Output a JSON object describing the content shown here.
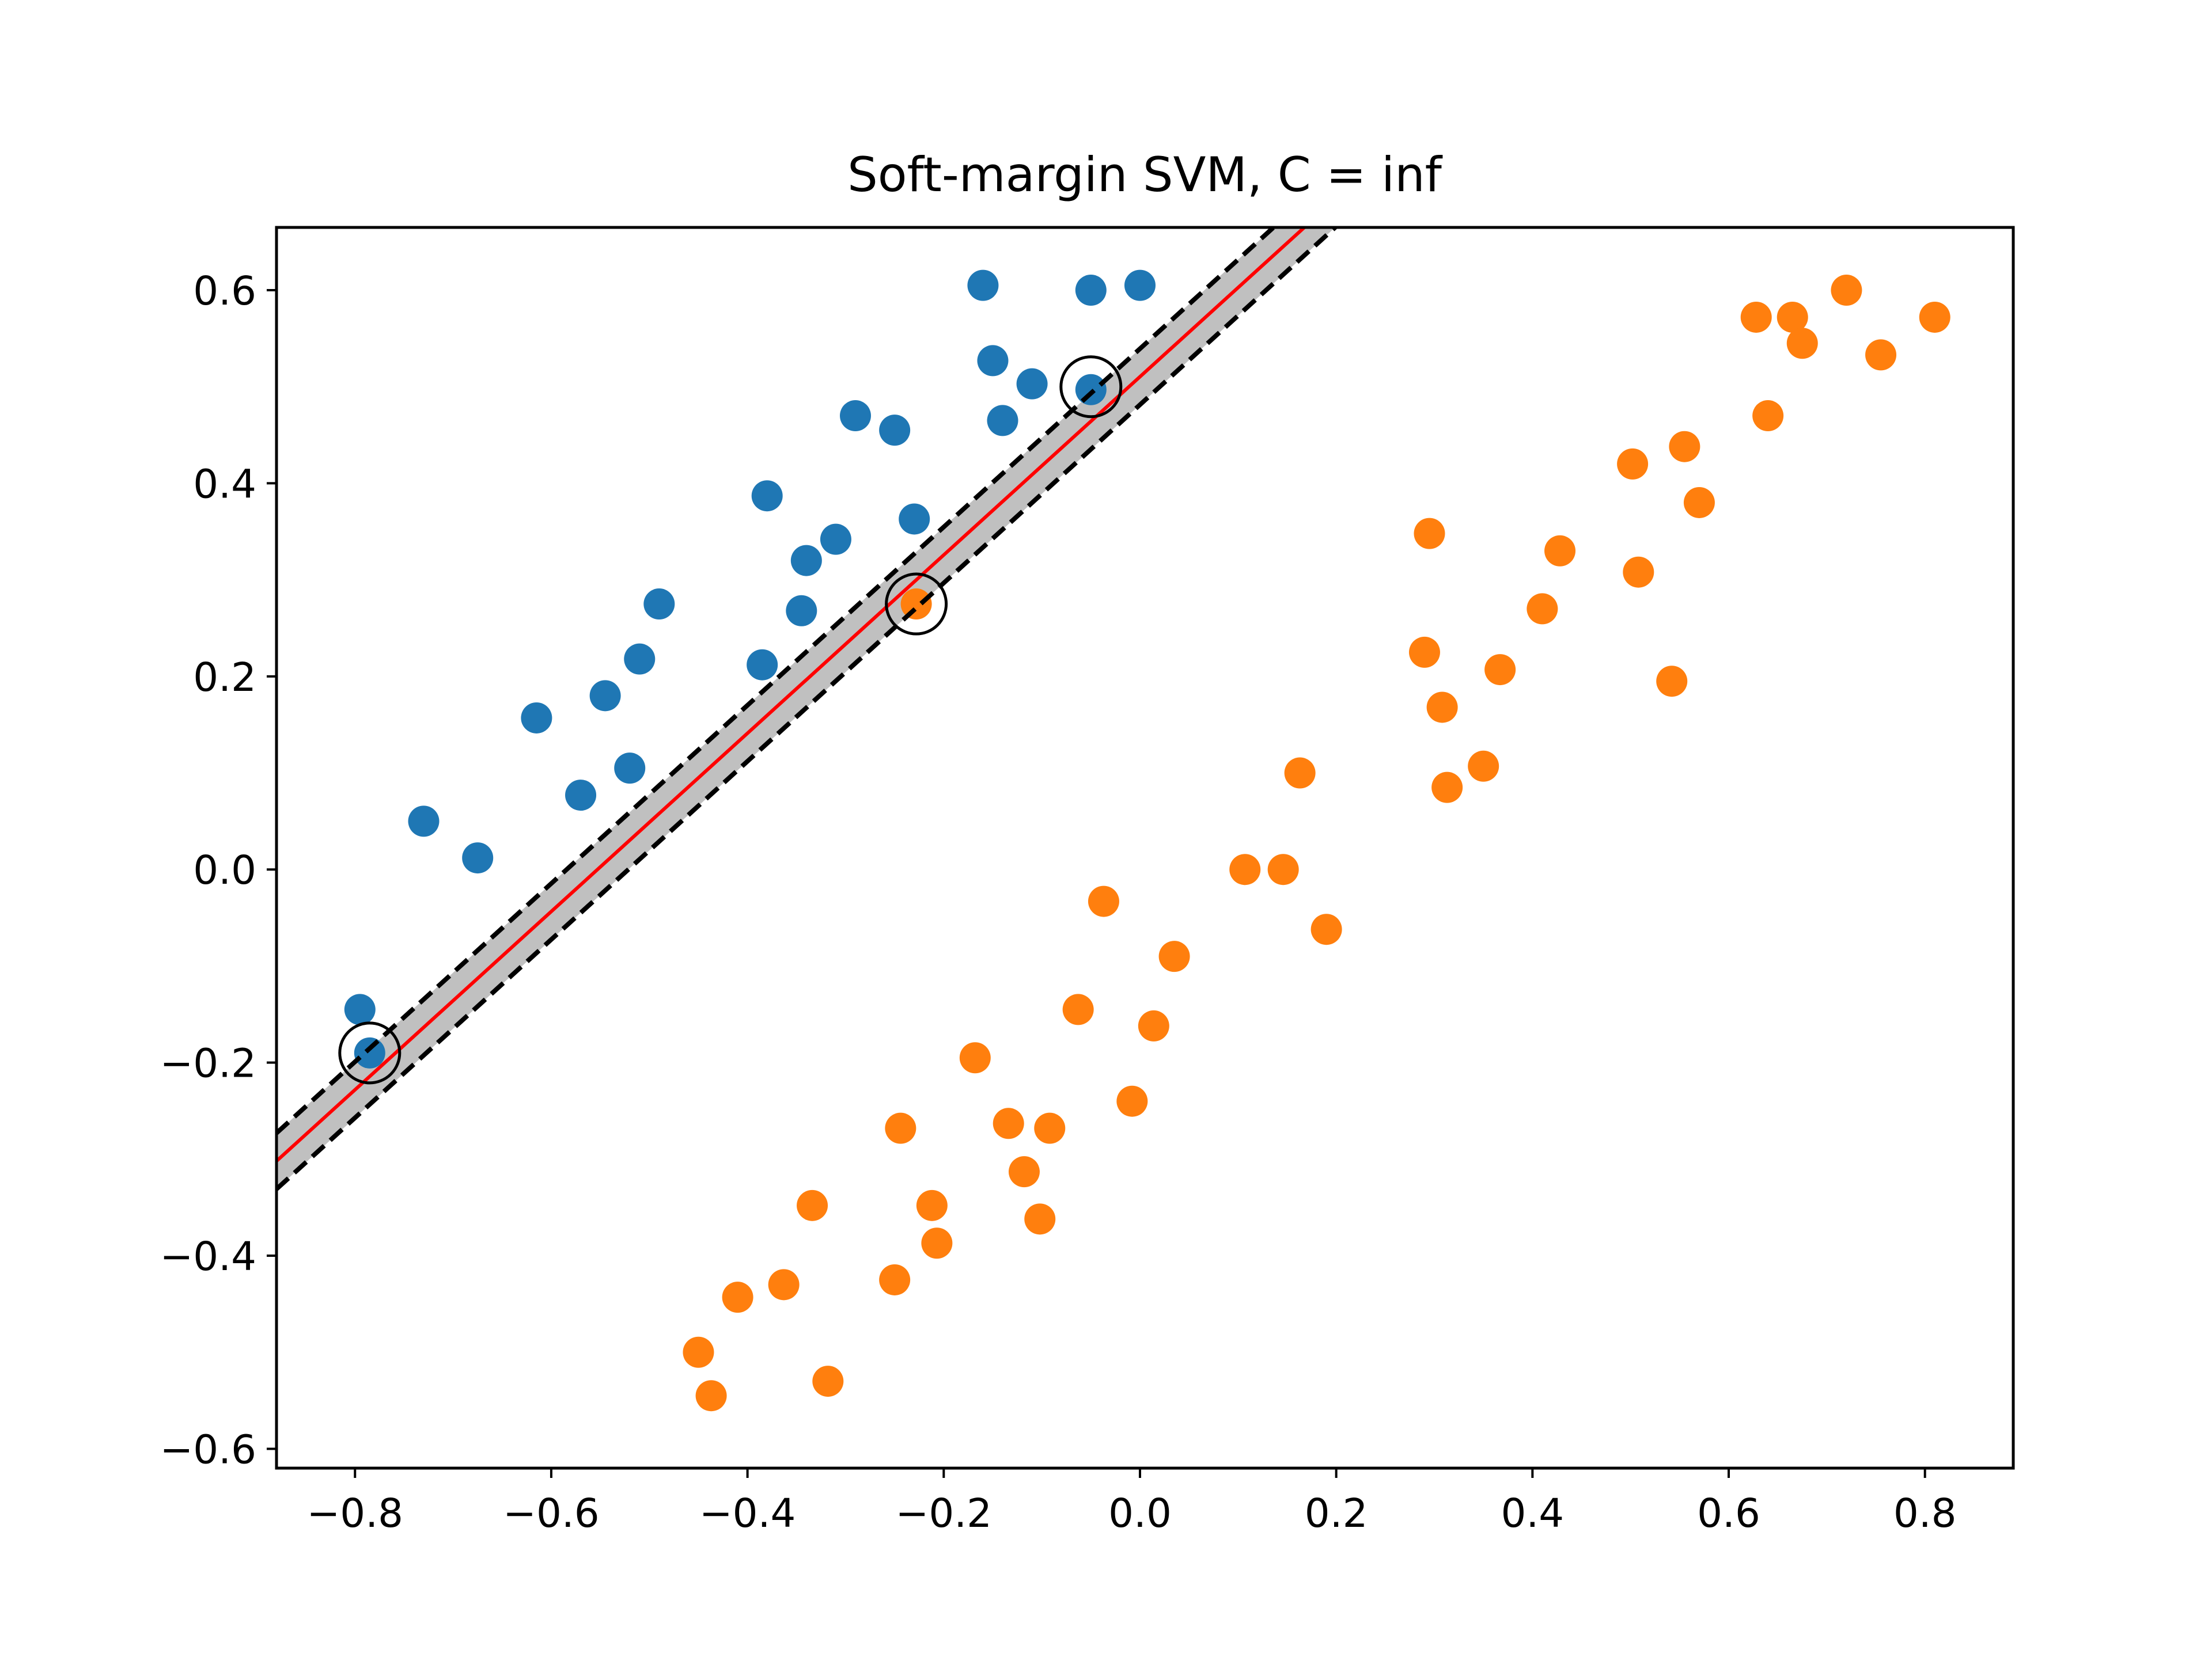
{
  "chart_data": {
    "type": "scatter",
    "title": "Soft-margin SVM, C = inf",
    "xlabel": "",
    "ylabel": "",
    "xlim": [
      -0.88,
      0.89
    ],
    "ylim": [
      -0.62,
      0.665
    ],
    "xticks": [
      -0.8,
      -0.6,
      -0.4,
      -0.2,
      0.0,
      0.2,
      0.4,
      0.6,
      0.8
    ],
    "xtick_labels": [
      "−0.8",
      "−0.6",
      "−0.4",
      "−0.2",
      "0.0",
      "0.2",
      "0.4",
      "0.6",
      "0.8"
    ],
    "yticks": [
      -0.6,
      -0.4,
      -0.2,
      0.0,
      0.2,
      0.4,
      0.6
    ],
    "ytick_labels": [
      "−0.6",
      "−0.4",
      "−0.2",
      "0.0",
      "0.2",
      "0.4",
      "0.6"
    ],
    "grid": false,
    "legend": "none",
    "colors": {
      "class_a": "#1f77b4",
      "class_b": "#ff7f0e",
      "decision_boundary": "#ff0000",
      "margin": "#000000",
      "margin_band": "#c0c0c0"
    },
    "series": [
      {
        "x": [
          -0.16,
          0.0,
          -0.05,
          -0.15,
          -0.11,
          -0.05,
          -0.29,
          -0.25,
          -0.14,
          -0.38,
          -0.23,
          -0.31,
          -0.34,
          -0.345,
          -0.49,
          -0.51,
          -0.385,
          -0.615,
          -0.545,
          -0.52,
          -0.57,
          -0.73,
          -0.675,
          -0.795,
          -0.785
        ],
        "y": [
          0.605,
          0.605,
          0.6,
          0.527,
          0.503,
          0.497,
          0.47,
          0.455,
          0.465,
          0.387,
          0.363,
          0.342,
          0.32,
          0.268,
          0.275,
          0.218,
          0.212,
          0.157,
          0.18,
          0.105,
          0.077,
          0.05,
          0.012,
          -0.145,
          -0.19
        ]
      },
      {
        "x": [
          0.72,
          0.628,
          0.665,
          0.81,
          0.675,
          0.755,
          0.64,
          0.555,
          0.502,
          0.57,
          0.295,
          0.428,
          0.508,
          0.41,
          0.29,
          0.367,
          0.308,
          0.542,
          0.35,
          0.313,
          0.163,
          0.107,
          0.146,
          0.19,
          -0.228,
          -0.037,
          0.035,
          -0.063,
          0.014,
          -0.168,
          -0.008,
          -0.244,
          -0.134,
          -0.092,
          -0.118,
          -0.334,
          -0.212,
          -0.102,
          -0.207,
          -0.25,
          -0.363,
          -0.41,
          -0.45,
          -0.437,
          -0.318
        ],
        "y": [
          0.6,
          0.572,
          0.572,
          0.572,
          0.545,
          0.533,
          0.47,
          0.438,
          0.42,
          0.38,
          0.348,
          0.33,
          0.308,
          0.27,
          0.225,
          0.207,
          0.168,
          0.195,
          0.107,
          0.085,
          0.1,
          0.0,
          0.0,
          -0.062,
          0.275,
          -0.033,
          -0.09,
          -0.145,
          -0.162,
          -0.195,
          -0.24,
          -0.268,
          -0.263,
          -0.268,
          -0.313,
          -0.348,
          -0.348,
          -0.362,
          -0.387,
          -0.425,
          -0.43,
          -0.443,
          -0.5,
          -0.545,
          -0.53
        ]
      }
    ],
    "support_vectors": {
      "x": [
        -0.05,
        -0.228,
        -0.785
      ],
      "y": [
        0.5,
        0.275,
        -0.19
      ]
    },
    "decision_boundary": {
      "x": [
        -0.88,
        0.2
      ],
      "y": [
        -0.302,
        0.695
      ]
    },
    "margin_upper": {
      "x": [
        -0.88,
        0.2
      ],
      "y": [
        -0.273,
        0.724
      ]
    },
    "margin_lower": {
      "x": [
        -0.88,
        0.2
      ],
      "y": [
        -0.331,
        0.666
      ]
    }
  }
}
